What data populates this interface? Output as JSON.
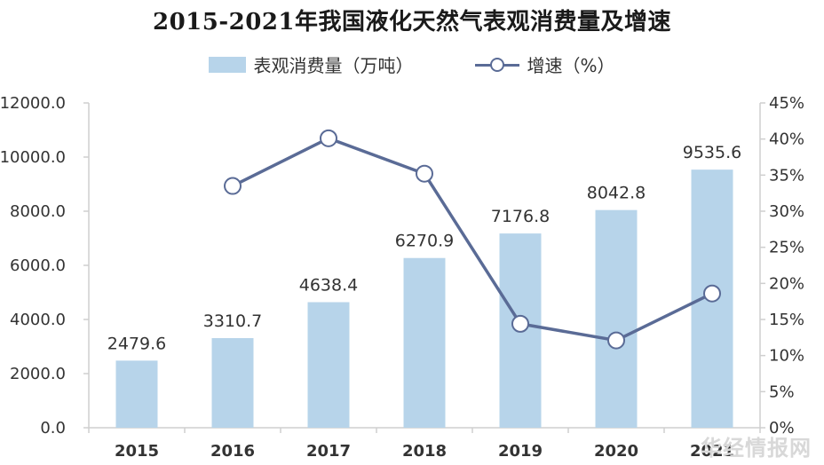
{
  "title": "2015-2021年我国液化天然气表观消费量及增速",
  "legend": {
    "bar_label": "表观消费量（万吨）",
    "line_label": "增速（%）"
  },
  "watermark": "华经情报网",
  "colors": {
    "bar": "#b7d4ea",
    "line": "#5a6b96",
    "marker_fill": "#ffffff",
    "axis": "#cfcfcf"
  },
  "chart_data": {
    "type": "bar",
    "categories": [
      "2015",
      "2016",
      "2017",
      "2018",
      "2019",
      "2020",
      "2021"
    ],
    "series": [
      {
        "name": "表观消费量（万吨）",
        "type": "bar",
        "axis": "left",
        "values": [
          2479.6,
          3310.7,
          4638.4,
          6270.9,
          7176.8,
          8042.8,
          9535.6
        ],
        "labels": [
          "2479.6",
          "3310.7",
          "4638.4",
          "6270.9",
          "7176.8",
          "8042.8",
          "9535.6"
        ]
      },
      {
        "name": "增速（%）",
        "type": "line",
        "axis": "right",
        "values": [
          null,
          33.5,
          40.1,
          35.2,
          14.4,
          12.1,
          18.6
        ]
      }
    ],
    "ylim_left": [
      0,
      12000
    ],
    "yticks_left": [
      "0.0",
      "2000.0",
      "4000.0",
      "6000.0",
      "8000.0",
      "10000.0",
      "12000.0"
    ],
    "ylim_right": [
      0,
      45
    ],
    "yticks_right": [
      "0%",
      "5%",
      "10%",
      "15%",
      "20%",
      "25%",
      "30%",
      "35%",
      "40%",
      "45%"
    ],
    "grid": false,
    "legend_position": "top-center"
  }
}
